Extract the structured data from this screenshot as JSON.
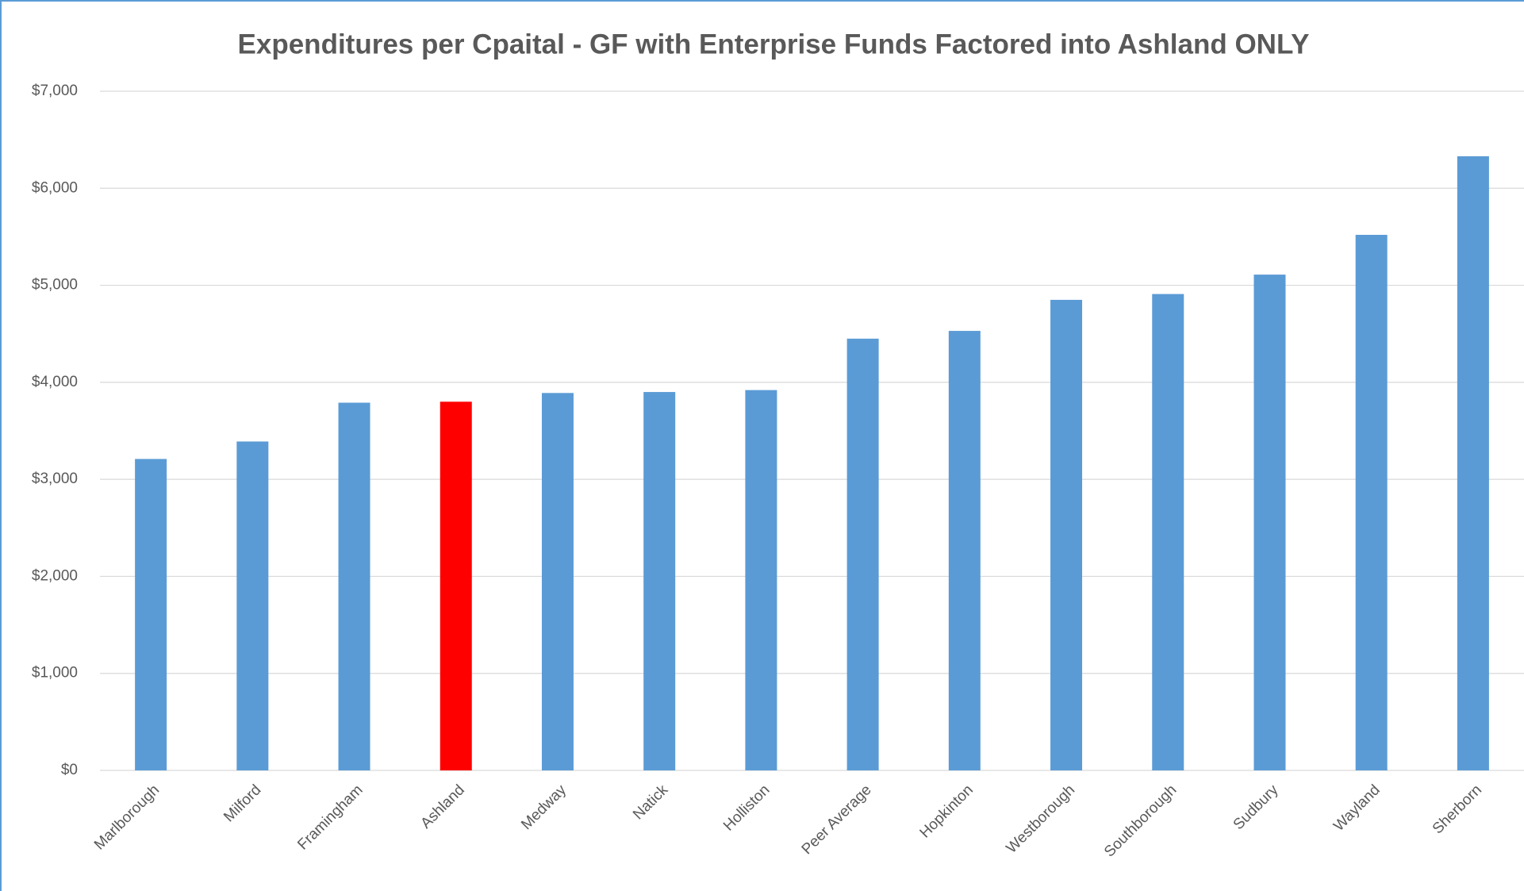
{
  "chart_data": {
    "type": "bar",
    "title": "Expenditures per Cpaital - GF with Enterprise Funds Factored into Ashland ONLY",
    "categories": [
      "Marlborough",
      "Milford",
      "Framingham",
      "Ashland",
      "Medway",
      "Natick",
      "Holliston",
      "Peer Average",
      "Hopkinton",
      "Westborough",
      "Southborough",
      "Sudbury",
      "Wayland",
      "Sherborn"
    ],
    "values": [
      3210,
      3390,
      3790,
      3800,
      3890,
      3900,
      3920,
      4450,
      4530,
      4850,
      4910,
      5110,
      5520,
      6330
    ],
    "colors": [
      "#5b9bd5",
      "#5b9bd5",
      "#5b9bd5",
      "#ff0000",
      "#5b9bd5",
      "#5b9bd5",
      "#5b9bd5",
      "#5b9bd5",
      "#5b9bd5",
      "#5b9bd5",
      "#5b9bd5",
      "#5b9bd5",
      "#5b9bd5",
      "#5b9bd5"
    ],
    "ylim": [
      0,
      7000
    ],
    "yticks": [
      {
        "value": 0,
        "label": "$0"
      },
      {
        "value": 1000,
        "label": "$1,000"
      },
      {
        "value": 2000,
        "label": "$2,000"
      },
      {
        "value": 3000,
        "label": "$3,000"
      },
      {
        "value": 4000,
        "label": "$4,000"
      },
      {
        "value": 5000,
        "label": "$5,000"
      },
      {
        "value": 6000,
        "label": "$6,000"
      },
      {
        "value": 7000,
        "label": "$7,000"
      }
    ],
    "grid": true
  }
}
